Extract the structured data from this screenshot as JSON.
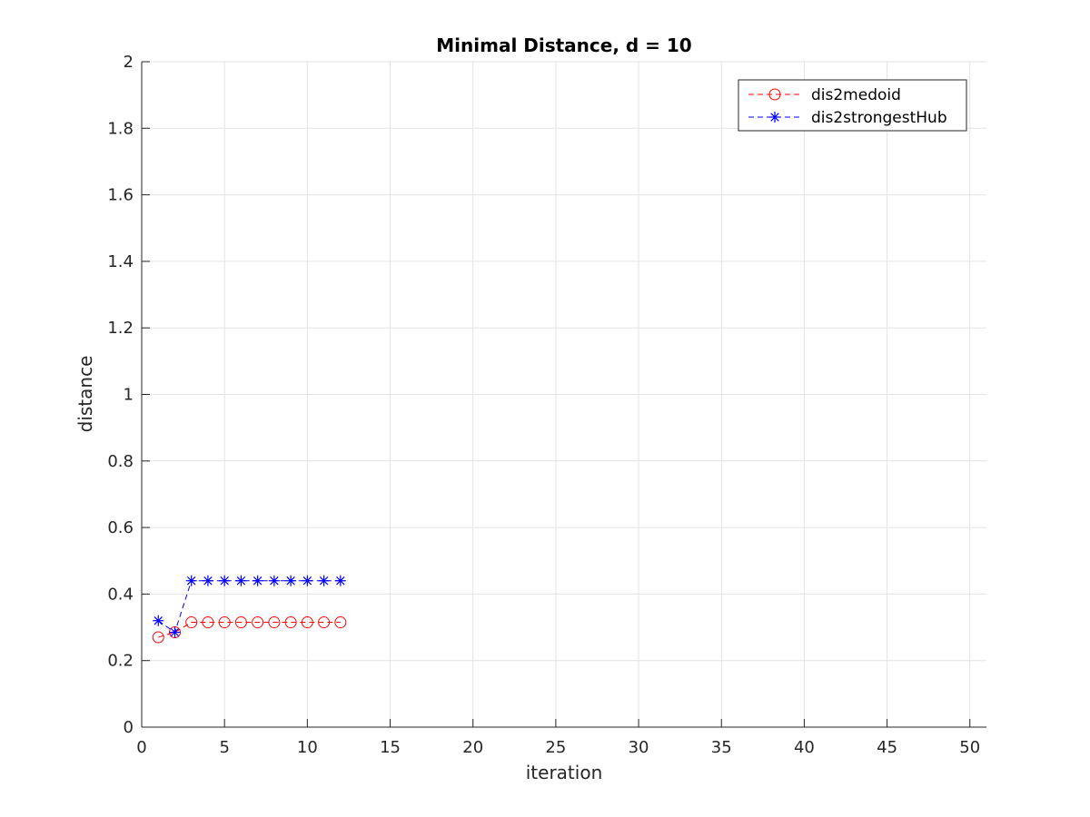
{
  "chart_data": {
    "type": "line",
    "title": "Minimal Distance, d = 10",
    "xlabel": "iteration",
    "ylabel": "distance",
    "xlim": [
      0,
      51
    ],
    "ylim": [
      0,
      2
    ],
    "xticks": [
      0,
      5,
      10,
      15,
      20,
      25,
      30,
      35,
      40,
      45,
      50
    ],
    "yticks": [
      0,
      0.2,
      0.4,
      0.6,
      0.8,
      1,
      1.2,
      1.4,
      1.6,
      1.8,
      2
    ],
    "ytick_labels": [
      "0",
      "0.2",
      "0.4",
      "0.6",
      "0.8",
      "1",
      "1.2",
      "1.4",
      "1.6",
      "1.8",
      "2"
    ],
    "grid": true,
    "legend_position": "top-right",
    "series": [
      {
        "name": "dis2medoid",
        "color": "#ff0000",
        "line_style": "dashed",
        "marker": "circle",
        "x": [
          1,
          2,
          3,
          4,
          5,
          6,
          7,
          8,
          9,
          10,
          11,
          12
        ],
        "values": [
          0.27,
          0.285,
          0.315,
          0.315,
          0.315,
          0.315,
          0.315,
          0.315,
          0.315,
          0.315,
          0.315,
          0.315
        ]
      },
      {
        "name": "dis2strongestHub",
        "color": "#0000ff",
        "line_style": "dashed",
        "marker": "asterisk",
        "x": [
          1,
          2,
          3,
          4,
          5,
          6,
          7,
          8,
          9,
          10,
          11,
          12
        ],
        "values": [
          0.32,
          0.285,
          0.44,
          0.44,
          0.44,
          0.44,
          0.44,
          0.44,
          0.44,
          0.44,
          0.44,
          0.44
        ]
      }
    ]
  }
}
